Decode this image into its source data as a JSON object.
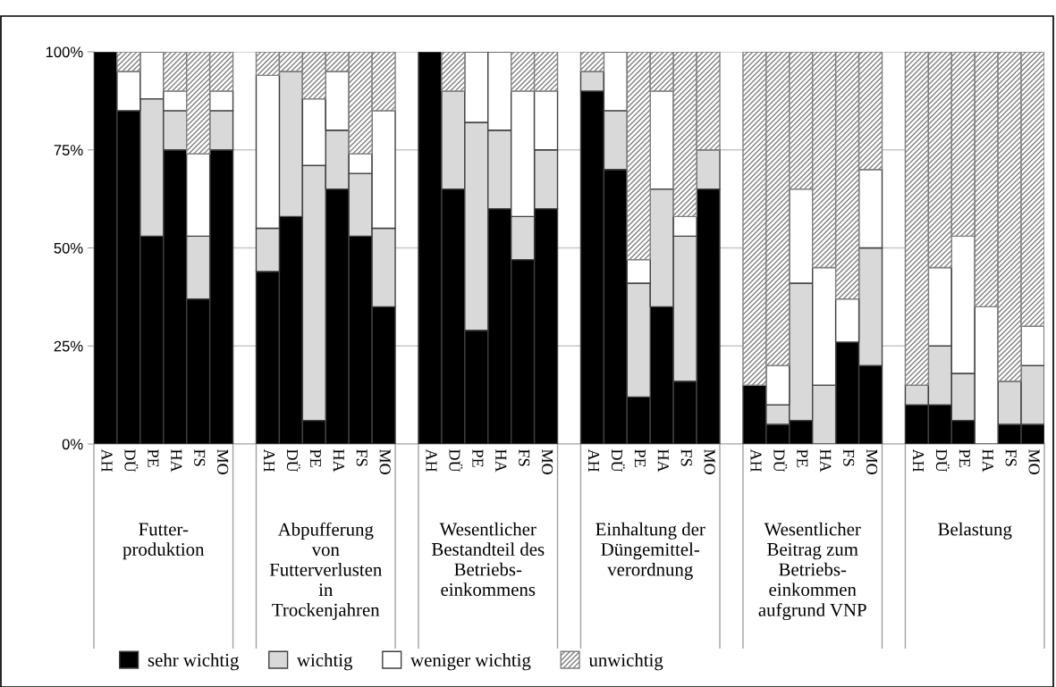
{
  "chart_data": {
    "type": "bar",
    "stacked": true,
    "categories": [
      "AH",
      "DÜ",
      "PE",
      "HA",
      "FS",
      "MO",
      null,
      "AH",
      "DÜ",
      "PE",
      "HA",
      "FS",
      "MO",
      null,
      "AH",
      "DÜ",
      "PE",
      "HA",
      "FS",
      "MO",
      null,
      "AH",
      "DÜ",
      "PE",
      "HA",
      "FS",
      "MO",
      null,
      "AH",
      "DÜ",
      "PE",
      "HA",
      "FS",
      "MO",
      null,
      "AH",
      "DÜ",
      "PE",
      "HA",
      "FS",
      "MO"
    ],
    "series": [
      {
        "name": "sehr wichtig",
        "color": "#000000",
        "values": [
          100,
          85,
          53,
          75,
          37,
          75,
          null,
          44,
          58,
          6,
          65,
          53,
          35,
          null,
          100,
          65,
          29,
          60,
          47,
          60,
          null,
          90,
          70,
          12,
          35,
          16,
          65,
          null,
          15,
          5,
          6,
          0,
          26,
          20,
          null,
          10,
          10,
          6,
          0,
          5,
          5
        ]
      },
      {
        "name": "wichtig",
        "color": "#d9d9d9",
        "values": [
          0,
          0,
          35,
          10,
          16,
          10,
          null,
          11,
          37,
          65,
          15,
          16,
          20,
          null,
          0,
          25,
          53,
          20,
          11,
          15,
          null,
          5,
          15,
          29,
          30,
          37,
          10,
          null,
          0,
          5,
          35,
          15,
          0,
          30,
          null,
          5,
          15,
          12,
          0,
          11,
          15
        ]
      },
      {
        "name": "weniger wichtig",
        "color": "#ffffff",
        "values": [
          0,
          10,
          12,
          5,
          21,
          5,
          null,
          39,
          0,
          17,
          15,
          5,
          30,
          null,
          0,
          0,
          18,
          20,
          32,
          15,
          null,
          0,
          15,
          6,
          25,
          5,
          0,
          null,
          0,
          10,
          24,
          30,
          11,
          20,
          null,
          0,
          20,
          35,
          35,
          0,
          10
        ]
      },
      {
        "name": "unwichtig",
        "color": "#808080",
        "values": [
          0,
          5,
          0,
          10,
          26,
          10,
          null,
          6,
          5,
          12,
          5,
          26,
          15,
          null,
          0,
          10,
          0,
          0,
          10,
          10,
          null,
          5,
          0,
          53,
          10,
          42,
          25,
          null,
          85,
          80,
          35,
          55,
          63,
          30,
          null,
          85,
          55,
          47,
          65,
          84,
          70
        ]
      }
    ],
    "ylim": [
      0,
      100
    ],
    "yticks": [
      {
        "value": 0,
        "label": "0%"
      },
      {
        "value": 25,
        "label": "25%"
      },
      {
        "value": 50,
        "label": "50%"
      },
      {
        "value": 75,
        "label": "75%"
      },
      {
        "value": 100,
        "label": "100%"
      }
    ],
    "grid": "y",
    "legend": "bottom",
    "annotations": [
      "Futter-\nproduktion",
      "Abpufferung\nvon\nFutterverlusten\nin\nTrockenjahren",
      "Wesentlicher\nBestandteil des\nBetriebs-\neinkommens",
      "Einhaltung der\nDüngemittel-\nverordnung",
      "Wesentlicher\nBeitrag zum\nBetriebs-\neinkommen\naufgrund VNP",
      "Belastung"
    ]
  }
}
